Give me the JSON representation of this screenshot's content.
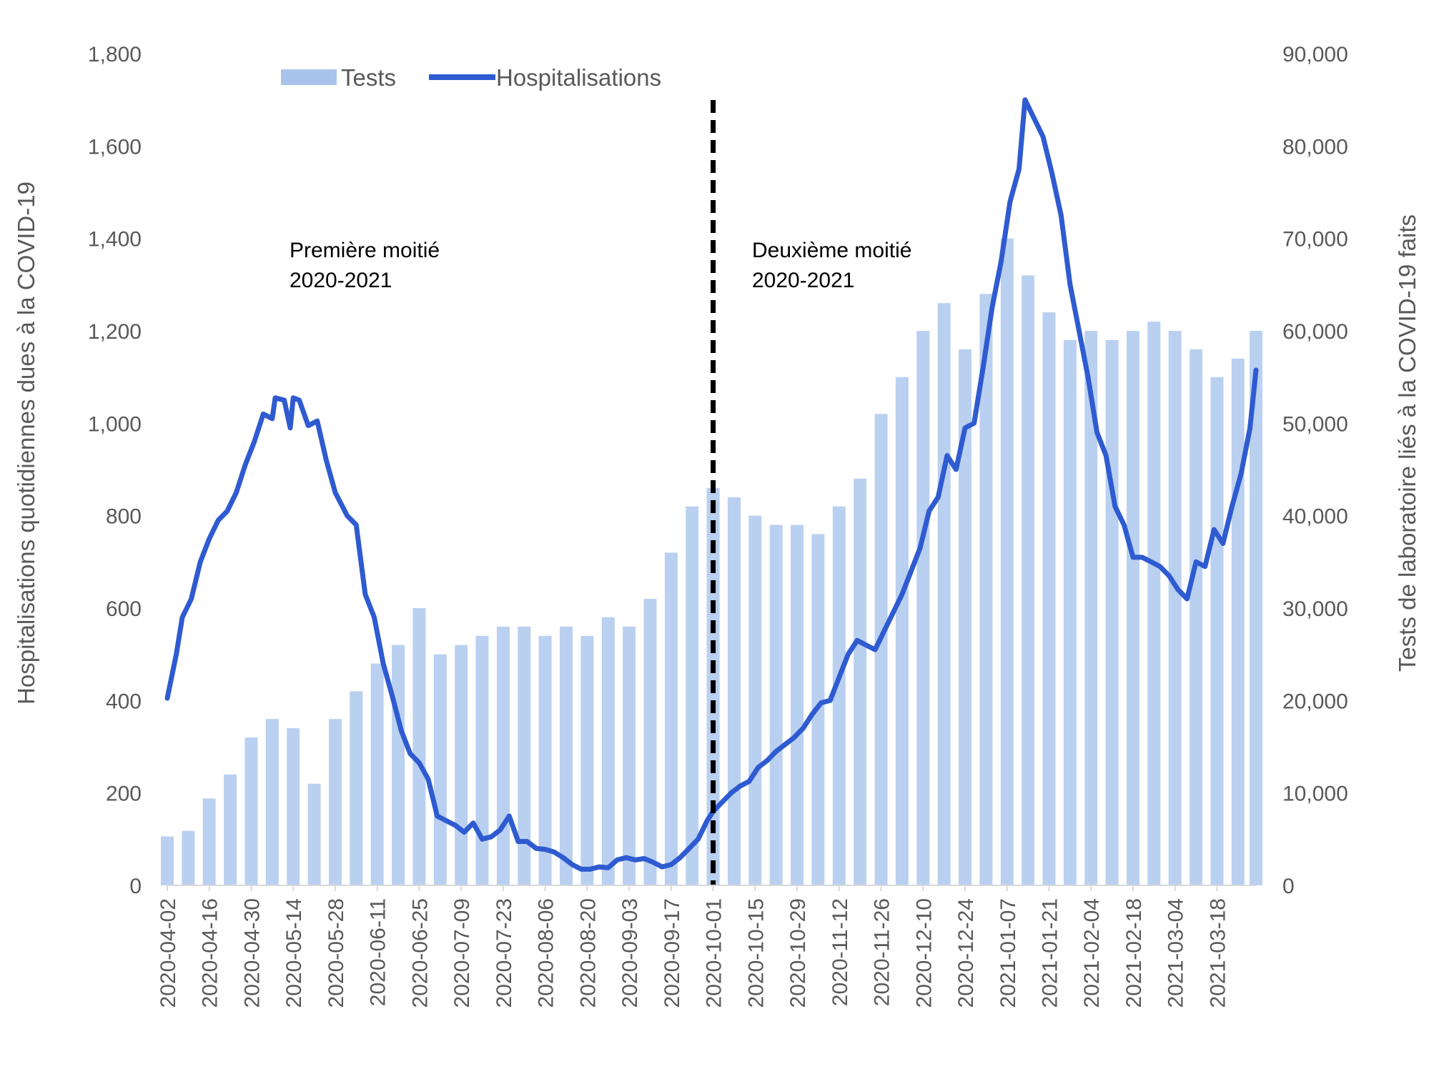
{
  "chart_data": {
    "type": "bar+line",
    "title": "",
    "ylabel_left": "Hospitalisations quotidiennes dues à la COVID-19",
    "ylabel_right": "Tests de laboratoire liés à la COVID-19 faits",
    "y_left_ticks": [
      "0",
      "200",
      "400",
      "600",
      "800",
      "1,000",
      "1,200",
      "1,400",
      "1,600",
      "1,800"
    ],
    "y_right_ticks": [
      "0",
      "10,000",
      "20,000",
      "30,000",
      "40,000",
      "50,000",
      "60,000",
      "70,000",
      "80,000",
      "90,000"
    ],
    "ylim_left": [
      0,
      1800
    ],
    "ylim_right": [
      0,
      90000
    ],
    "x_start": "2020-04-02",
    "x_end": "2021-03-31",
    "x_tick_labels": [
      "2020-04-02",
      "2020-04-16",
      "2020-04-30",
      "2020-05-14",
      "2020-05-28",
      "2020-06-11",
      "2020-06-25",
      "2020-07-09",
      "2020-07-23",
      "2020-08-06",
      "2020-08-20",
      "2020-09-03",
      "2020-09-17",
      "2020-10-01",
      "2020-10-15",
      "2020-10-29",
      "2020-11-12",
      "2020-11-26",
      "2020-12-10",
      "2020-12-24",
      "2021-01-07",
      "2021-01-21",
      "2021-02-04",
      "2021-02-18",
      "2021-03-04",
      "2021-03-18"
    ],
    "legend": {
      "position": "top-center",
      "tests_label": "Tests",
      "hosp_label": "Hospitalisations"
    },
    "divider_date": "2020-10-01",
    "annotations": {
      "first_half_line1": "Première moitié",
      "first_half_line2": "2020-2021",
      "second_half_line1": "Deuxième moitié",
      "second_half_line2": "2020-2021"
    },
    "colors": {
      "tests": "#a9c4ec",
      "hospitalisations": "#2f5bd1",
      "divider": "#000000",
      "text": "#595959"
    },
    "series": [
      {
        "name": "Tests",
        "axis": "right",
        "type": "bar",
        "points": [
          [
            "2020-04-02",
            5300
          ],
          [
            "2020-04-09",
            5900
          ],
          [
            "2020-04-16",
            9400
          ],
          [
            "2020-04-23",
            12000
          ],
          [
            "2020-04-30",
            16000
          ],
          [
            "2020-05-07",
            18000
          ],
          [
            "2020-05-14",
            17000
          ],
          [
            "2020-05-21",
            11000
          ],
          [
            "2020-05-28",
            18000
          ],
          [
            "2020-06-04",
            21000
          ],
          [
            "2020-06-11",
            24000
          ],
          [
            "2020-06-18",
            26000
          ],
          [
            "2020-06-25",
            30000
          ],
          [
            "2020-07-02",
            25000
          ],
          [
            "2020-07-09",
            26000
          ],
          [
            "2020-07-16",
            27000
          ],
          [
            "2020-07-23",
            28000
          ],
          [
            "2020-07-30",
            28000
          ],
          [
            "2020-08-06",
            27000
          ],
          [
            "2020-08-13",
            28000
          ],
          [
            "2020-08-20",
            27000
          ],
          [
            "2020-08-27",
            29000
          ],
          [
            "2020-09-03",
            28000
          ],
          [
            "2020-09-10",
            31000
          ],
          [
            "2020-09-17",
            36000
          ],
          [
            "2020-09-24",
            41000
          ],
          [
            "2020-10-01",
            43000
          ],
          [
            "2020-10-08",
            42000
          ],
          [
            "2020-10-15",
            40000
          ],
          [
            "2020-10-22",
            39000
          ],
          [
            "2020-10-29",
            39000
          ],
          [
            "2020-11-05",
            38000
          ],
          [
            "2020-11-12",
            41000
          ],
          [
            "2020-11-19",
            44000
          ],
          [
            "2020-11-26",
            51000
          ],
          [
            "2020-12-03",
            55000
          ],
          [
            "2020-12-10",
            60000
          ],
          [
            "2020-12-17",
            63000
          ],
          [
            "2020-12-24",
            58000
          ],
          [
            "2020-12-31",
            64000
          ],
          [
            "2021-01-07",
            70000
          ],
          [
            "2021-01-14",
            66000
          ],
          [
            "2021-01-21",
            62000
          ],
          [
            "2021-01-28",
            59000
          ],
          [
            "2021-02-04",
            60000
          ],
          [
            "2021-02-11",
            59000
          ],
          [
            "2021-02-18",
            60000
          ],
          [
            "2021-02-25",
            61000
          ],
          [
            "2021-03-04",
            60000
          ],
          [
            "2021-03-11",
            58000
          ],
          [
            "2021-03-18",
            55000
          ],
          [
            "2021-03-25",
            57000
          ],
          [
            "2021-03-31",
            60000
          ]
        ]
      },
      {
        "name": "Hospitalisations",
        "axis": "left",
        "type": "line",
        "points": [
          [
            "2020-04-02",
            405
          ],
          [
            "2020-04-05",
            500
          ],
          [
            "2020-04-07",
            580
          ],
          [
            "2020-04-10",
            620
          ],
          [
            "2020-04-13",
            700
          ],
          [
            "2020-04-16",
            750
          ],
          [
            "2020-04-19",
            790
          ],
          [
            "2020-04-22",
            810
          ],
          [
            "2020-04-25",
            850
          ],
          [
            "2020-04-28",
            910
          ],
          [
            "2020-05-01",
            960
          ],
          [
            "2020-05-04",
            1020
          ],
          [
            "2020-05-07",
            1010
          ],
          [
            "2020-05-08",
            1055
          ],
          [
            "2020-05-11",
            1050
          ],
          [
            "2020-05-13",
            990
          ],
          [
            "2020-05-14",
            1055
          ],
          [
            "2020-05-16",
            1050
          ],
          [
            "2020-05-19",
            995
          ],
          [
            "2020-05-22",
            1005
          ],
          [
            "2020-05-25",
            920
          ],
          [
            "2020-05-28",
            850
          ],
          [
            "2020-06-01",
            800
          ],
          [
            "2020-06-04",
            780
          ],
          [
            "2020-06-07",
            630
          ],
          [
            "2020-06-10",
            580
          ],
          [
            "2020-06-13",
            480
          ],
          [
            "2020-06-16",
            410
          ],
          [
            "2020-06-19",
            335
          ],
          [
            "2020-06-22",
            285
          ],
          [
            "2020-06-25",
            265
          ],
          [
            "2020-06-28",
            230
          ],
          [
            "2020-07-01",
            150
          ],
          [
            "2020-07-04",
            140
          ],
          [
            "2020-07-07",
            130
          ],
          [
            "2020-07-10",
            115
          ],
          [
            "2020-07-13",
            135
          ],
          [
            "2020-07-16",
            100
          ],
          [
            "2020-07-19",
            105
          ],
          [
            "2020-07-22",
            120
          ],
          [
            "2020-07-25",
            150
          ],
          [
            "2020-07-28",
            95
          ],
          [
            "2020-07-31",
            95
          ],
          [
            "2020-08-03",
            80
          ],
          [
            "2020-08-06",
            78
          ],
          [
            "2020-08-09",
            72
          ],
          [
            "2020-08-12",
            60
          ],
          [
            "2020-08-15",
            45
          ],
          [
            "2020-08-18",
            35
          ],
          [
            "2020-08-21",
            35
          ],
          [
            "2020-08-24",
            40
          ],
          [
            "2020-08-27",
            38
          ],
          [
            "2020-08-30",
            55
          ],
          [
            "2020-09-02",
            60
          ],
          [
            "2020-09-05",
            55
          ],
          [
            "2020-09-08",
            58
          ],
          [
            "2020-09-11",
            50
          ],
          [
            "2020-09-14",
            40
          ],
          [
            "2020-09-17",
            45
          ],
          [
            "2020-09-20",
            60
          ],
          [
            "2020-09-23",
            80
          ],
          [
            "2020-09-26",
            100
          ],
          [
            "2020-09-29",
            140
          ],
          [
            "2020-10-01",
            160
          ],
          [
            "2020-10-04",
            180
          ],
          [
            "2020-10-07",
            200
          ],
          [
            "2020-10-10",
            215
          ],
          [
            "2020-10-13",
            225
          ],
          [
            "2020-10-16",
            255
          ],
          [
            "2020-10-19",
            270
          ],
          [
            "2020-10-22",
            290
          ],
          [
            "2020-10-25",
            305
          ],
          [
            "2020-10-28",
            320
          ],
          [
            "2020-10-31",
            340
          ],
          [
            "2020-11-03",
            370
          ],
          [
            "2020-11-06",
            395
          ],
          [
            "2020-11-09",
            400
          ],
          [
            "2020-11-12",
            450
          ],
          [
            "2020-11-15",
            500
          ],
          [
            "2020-11-18",
            530
          ],
          [
            "2020-11-21",
            520
          ],
          [
            "2020-11-24",
            510
          ],
          [
            "2020-11-27",
            550
          ],
          [
            "2020-11-30",
            590
          ],
          [
            "2020-12-03",
            630
          ],
          [
            "2020-12-06",
            680
          ],
          [
            "2020-12-09",
            730
          ],
          [
            "2020-12-12",
            810
          ],
          [
            "2020-12-15",
            840
          ],
          [
            "2020-12-18",
            930
          ],
          [
            "2020-12-21",
            900
          ],
          [
            "2020-12-24",
            990
          ],
          [
            "2020-12-27",
            1000
          ],
          [
            "2020-12-30",
            1120
          ],
          [
            "2021-01-02",
            1250
          ],
          [
            "2021-01-05",
            1350
          ],
          [
            "2021-01-08",
            1480
          ],
          [
            "2021-01-11",
            1550
          ],
          [
            "2021-01-13",
            1700
          ],
          [
            "2021-01-16",
            1660
          ],
          [
            "2021-01-19",
            1620
          ],
          [
            "2021-01-22",
            1540
          ],
          [
            "2021-01-25",
            1450
          ],
          [
            "2021-01-28",
            1300
          ],
          [
            "2021-01-31",
            1200
          ],
          [
            "2021-02-03",
            1100
          ],
          [
            "2021-02-06",
            980
          ],
          [
            "2021-02-09",
            930
          ],
          [
            "2021-02-12",
            820
          ],
          [
            "2021-02-15",
            780
          ],
          [
            "2021-02-18",
            710
          ],
          [
            "2021-02-21",
            710
          ],
          [
            "2021-02-24",
            700
          ],
          [
            "2021-02-27",
            690
          ],
          [
            "2021-03-02",
            670
          ],
          [
            "2021-03-05",
            640
          ],
          [
            "2021-03-08",
            620
          ],
          [
            "2021-03-11",
            700
          ],
          [
            "2021-03-14",
            690
          ],
          [
            "2021-03-17",
            770
          ],
          [
            "2021-03-20",
            740
          ],
          [
            "2021-03-23",
            820
          ],
          [
            "2021-03-26",
            890
          ],
          [
            "2021-03-29",
            990
          ],
          [
            "2021-03-31",
            1115
          ]
        ]
      }
    ]
  }
}
